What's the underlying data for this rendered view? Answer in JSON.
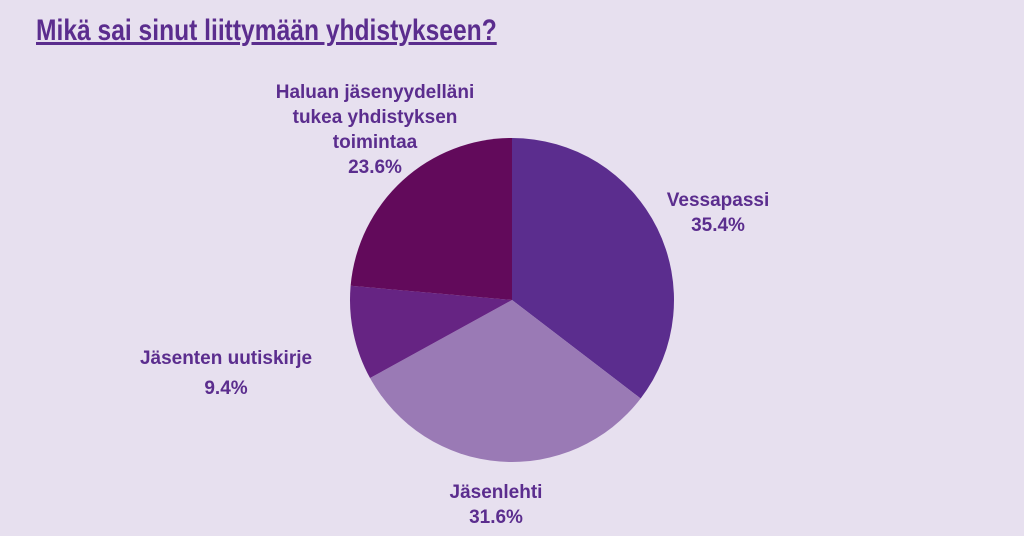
{
  "chart_data": {
    "type": "pie",
    "title": "Mikä sai sinut liittymään yhdistykseen?",
    "categories": [
      "Vessapassi",
      "Jäsenlehti",
      "Jäsenten uutiskirje",
      "Haluan jäsenyydelläni tukea yhdistyksen toimintaa"
    ],
    "values": [
      35.4,
      31.6,
      9.4,
      23.6
    ],
    "value_labels": [
      "35.4%",
      "31.6%",
      "9.4%",
      "23.6%"
    ],
    "colors": [
      "#5b2d8e",
      "#9a7ab5",
      "#662483",
      "#620a5b"
    ]
  }
}
